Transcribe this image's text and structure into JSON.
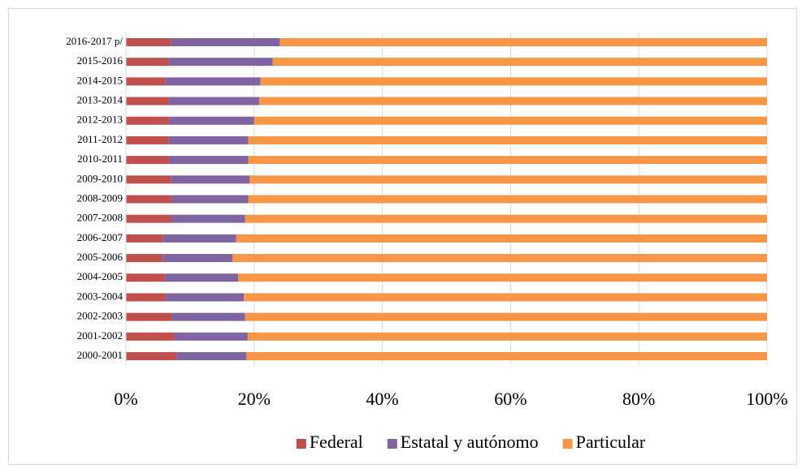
{
  "chart_data": {
    "type": "stacked-barh",
    "categories": [
      "2000-2001",
      "2001-2002",
      "2002-2003",
      "2003-2004",
      "2004-2005",
      "2005-2006",
      "2006-2007",
      "2007-2008",
      "2008-2009",
      "2009-2010",
      "2010-2011",
      "2011-2012",
      "2012-2013",
      "2013-2014",
      "2014-2015",
      "2015-2016",
      "2016-2017 p/"
    ],
    "series": [
      {
        "name": "Federal",
        "color": "#c0504d",
        "values": [
          7.9,
          7.6,
          7.1,
          6.2,
          6.1,
          5.8,
          5.8,
          7.1,
          7.1,
          7.0,
          6.7,
          6.7,
          6.7,
          6.7,
          6.1,
          6.7,
          7.0
        ]
      },
      {
        "name": "Estatal y autónomo",
        "color": "#8064a2",
        "values": [
          10.9,
          11.4,
          11.5,
          12.2,
          11.4,
          10.8,
          11.4,
          11.5,
          12.0,
          12.3,
          12.4,
          12.4,
          13.3,
          14.1,
          14.9,
          16.2,
          17.0
        ]
      },
      {
        "name": "Particular",
        "color": "#f79646",
        "values": [
          81.2,
          81.0,
          81.4,
          81.6,
          82.5,
          83.4,
          82.8,
          81.4,
          80.9,
          80.7,
          80.9,
          80.9,
          80.0,
          79.2,
          79.0,
          77.1,
          76.0
        ]
      }
    ],
    "xlim": [
      0,
      100
    ],
    "xticks": [
      {
        "value": 0,
        "label": "0%"
      },
      {
        "value": 20,
        "label": "20%"
      },
      {
        "value": 40,
        "label": "40%"
      },
      {
        "value": 60,
        "label": "60%"
      },
      {
        "value": 80,
        "label": "80%"
      },
      {
        "value": 100,
        "label": "100%"
      }
    ],
    "grid": true
  }
}
